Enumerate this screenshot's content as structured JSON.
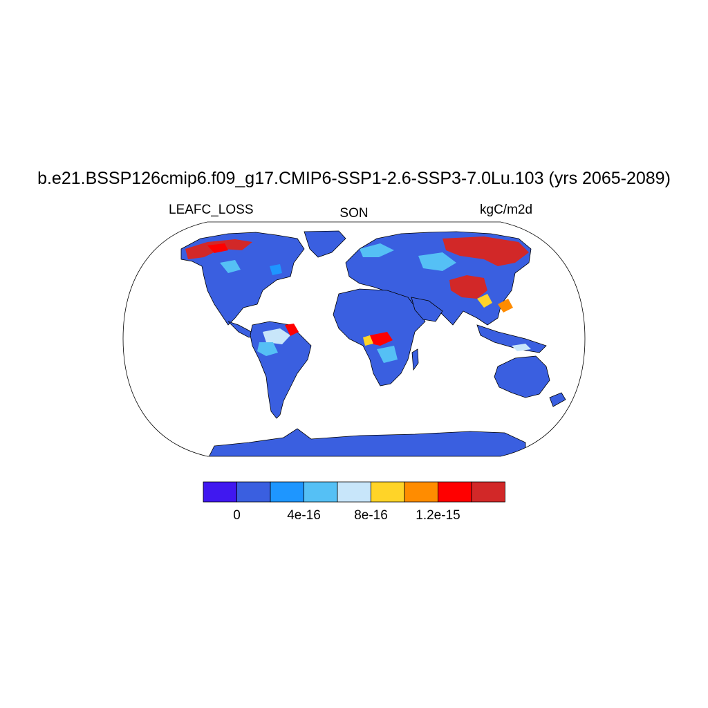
{
  "title": "b.e21.BSSP126cmip6.f09_g17.CMIP6-SSP1-2.6-SSP3-7.0Lu.103 (yrs 2065-2089)",
  "variable": "LEAFC_LOSS",
  "season": "SON",
  "units": "kgC/m2d",
  "colorbar": {
    "colors": [
      "#4018f0",
      "#3a5fe0",
      "#1e96ff",
      "#55c0f5",
      "#c8e6fa",
      "#ffd428",
      "#ff8c00",
      "#ff0000",
      "#d22828"
    ],
    "tick_labels": [
      "0",
      "4e-16",
      "8e-16",
      "1.2e-15"
    ]
  },
  "legend_colors": {
    "ocean": "#ffffff",
    "land_base": "#3a5fe0",
    "coast": "#000000"
  }
}
